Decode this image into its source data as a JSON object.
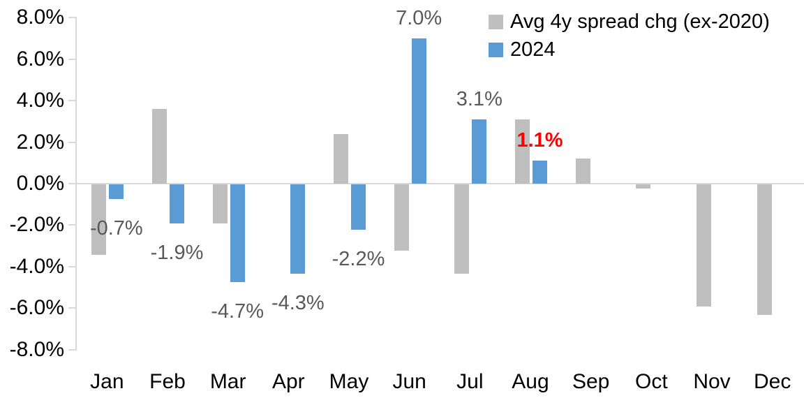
{
  "chart_data": {
    "type": "bar",
    "title": "",
    "categories": [
      "Jan",
      "Feb",
      "Mar",
      "Apr",
      "May",
      "Jun",
      "Jul",
      "Aug",
      "Sep",
      "Oct",
      "Nov",
      "Dec"
    ],
    "series": [
      {
        "name": "Avg 4y spread chg (ex-2020)",
        "color": "#BFBFBF",
        "values": [
          -3.4,
          3.6,
          -1.9,
          0.0,
          2.4,
          -3.2,
          -4.3,
          3.1,
          1.2,
          -0.2,
          -5.9,
          -6.3
        ]
      },
      {
        "name": "2024",
        "color": "#5B9BD5",
        "values": [
          -0.7,
          -1.9,
          -4.7,
          -4.3,
          -2.2,
          7.0,
          3.1,
          1.1,
          null,
          null,
          null,
          null
        ]
      }
    ],
    "data_labels": [
      {
        "category": "Jan",
        "text": "-0.7%",
        "color": "#595959",
        "bold": false
      },
      {
        "category": "Feb",
        "text": "-1.9%",
        "color": "#595959",
        "bold": false
      },
      {
        "category": "Mar",
        "text": "-4.7%",
        "color": "#595959",
        "bold": false
      },
      {
        "category": "Apr",
        "text": "-4.3%",
        "color": "#595959",
        "bold": false
      },
      {
        "category": "May",
        "text": "-2.2%",
        "color": "#595959",
        "bold": false
      },
      {
        "category": "Jun",
        "text": "7.0%",
        "color": "#595959",
        "bold": false
      },
      {
        "category": "Jul",
        "text": "3.1%",
        "color": "#595959",
        "bold": false
      },
      {
        "category": "Aug",
        "text": "1.1%",
        "color": "#FF0000",
        "bold": true
      }
    ],
    "y_axis": {
      "unit": "%",
      "min": -8,
      "max": 8,
      "step": 2,
      "tick_labels": [
        "8.0%",
        "6.0%",
        "4.0%",
        "2.0%",
        "0.0%",
        "-2.0%",
        "-4.0%",
        "-6.0%",
        "-8.0%"
      ]
    },
    "x_axis_label": "",
    "y_axis_label": "",
    "legend": {
      "position": "top-right",
      "entries": [
        {
          "label": "Avg 4y spread chg (ex-2020)",
          "color": "#BFBFBF"
        },
        {
          "label": "2024",
          "color": "#5B9BD5"
        }
      ]
    },
    "gridlines": false,
    "axis_color": "#D9D9D9",
    "background": "#FFFFFF"
  }
}
